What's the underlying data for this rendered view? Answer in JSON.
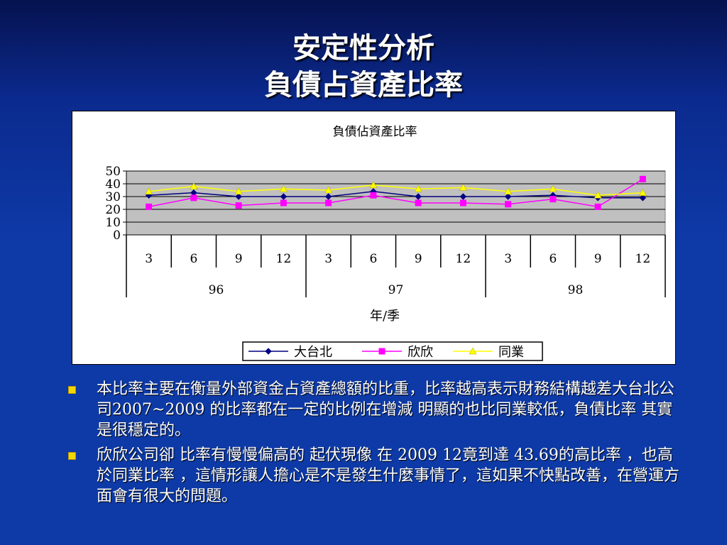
{
  "slide": {
    "title_line1": "安定性分析",
    "title_line2": "負債占資產比率"
  },
  "chart_data": {
    "type": "line",
    "title": "負債佔資產比率",
    "xlabel": "年/季",
    "ylabel": "",
    "ylim": [
      0,
      50
    ],
    "yticks": [
      0,
      10,
      20,
      30,
      40,
      50
    ],
    "grid": true,
    "legend_position": "bottom",
    "categories": [
      "3",
      "6",
      "9",
      "12",
      "3",
      "6",
      "9",
      "12",
      "3",
      "6",
      "9",
      "12"
    ],
    "groups": [
      {
        "label": "96",
        "span": 4
      },
      {
        "label": "97",
        "span": 4
      },
      {
        "label": "98",
        "span": 4
      }
    ],
    "series": [
      {
        "name": "大台北",
        "color": "#000080",
        "marker": "diamond",
        "values": [
          31,
          33,
          30,
          30,
          30,
          34,
          30,
          30,
          30,
          31,
          29,
          29
        ]
      },
      {
        "name": "欣欣",
        "color": "#ff00ff",
        "marker": "square",
        "values": [
          22,
          29,
          23,
          25,
          25,
          31,
          25,
          25,
          24,
          28,
          22,
          43.69
        ]
      },
      {
        "name": "同業",
        "color": "#ffff00",
        "marker": "triangle",
        "values": [
          34,
          38,
          34,
          36,
          35,
          39,
          36,
          37,
          34,
          36,
          31,
          33
        ]
      }
    ],
    "plot_bg": "#c0c0c0"
  },
  "bullets": [
    {
      "text": "本比率主要在衡量外部資金占資產總額的比重，比率越高表示財務結構越差大台北公司2007~2009 的比率都在一定的比例在增減 明顯的也比同業較低，負債比率 其實是很穩定的。"
    },
    {
      "text": "欣欣公司卻 比率有慢慢偏高的 起伏現像 在 2009 12竟到達 43.69的高比率 ，也高於同業比率 ，這情形讓人擔心是不是發生什麼事情了，這如果不快點改善，在營運方面會有很大的問題。"
    }
  ],
  "colors": {
    "bullet": "#f6d600",
    "title_text": "#ffffff"
  }
}
